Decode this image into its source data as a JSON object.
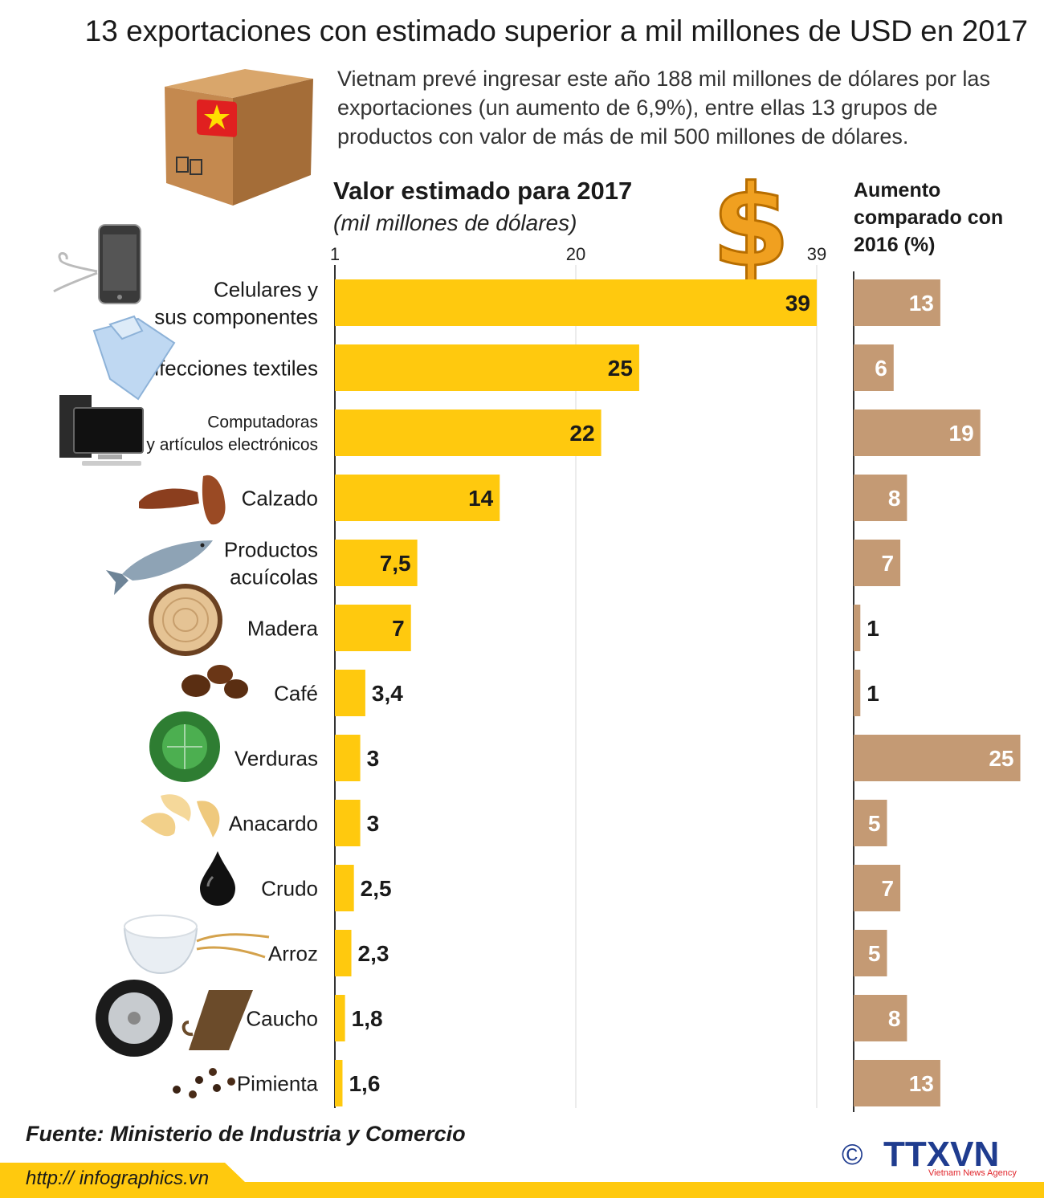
{
  "header": {
    "title": "13 exportaciones con estimado superior a mil millones de USD en 2017",
    "intro": "Vietnam prevé ingresar este año 188 mil millones de dólares por las exportaciones (un aumento de 6,9%), entre ellas 13 grupos de productos con valor de más de mil 500 millones de dólares."
  },
  "chart_data": [
    {
      "type": "bar",
      "orientation": "horizontal",
      "title": "Valor estimado para 2017",
      "subtitle": "(mil millones de dólares)",
      "xlim": [
        1,
        39
      ],
      "ticks": [
        "1",
        "20",
        "39"
      ],
      "bar_color": "#FFC90E",
      "categories": [
        "Celulares y sus componentes",
        "Confecciones textiles",
        "Computadoras y artículos electrónicos",
        "Calzado",
        "Productos acuícolas",
        "Madera",
        "Café",
        "Verduras",
        "Anacardo",
        "Crudo",
        "Arroz",
        "Caucho",
        "Pimienta"
      ],
      "values": [
        39,
        25,
        22,
        14,
        7.5,
        7,
        3.4,
        3,
        3,
        2.5,
        2.3,
        1.8,
        1.6
      ],
      "value_labels": [
        "39",
        "25",
        "22",
        "14",
        "7,5",
        "7",
        "3,4",
        "3",
        "3",
        "2,5",
        "2,3",
        "1,8",
        "1,6"
      ]
    },
    {
      "type": "bar",
      "orientation": "horizontal",
      "title": "Aumento comparado con 2016 (%)",
      "bar_color": "#C49A74",
      "categories": [
        "Celulares y sus componentes",
        "Confecciones textiles",
        "Computadoras y artículos electrónicos",
        "Calzado",
        "Productos acuícolas",
        "Madera",
        "Café",
        "Verduras",
        "Anacardo",
        "Crudo",
        "Arroz",
        "Caucho",
        "Pimienta"
      ],
      "values": [
        13,
        6,
        19,
        8,
        7,
        1,
        1,
        25,
        5,
        7,
        5,
        8,
        13
      ],
      "value_labels": [
        "13",
        "6",
        "19",
        "8",
        "7",
        "1",
        "1",
        "25",
        "5",
        "7",
        "5",
        "8",
        "13"
      ]
    }
  ],
  "category_labels": [
    [
      "Celulares y",
      "sus componentes"
    ],
    [
      "Confecciones textiles"
    ],
    [
      "Computadoras",
      "y artículos electrónicos"
    ],
    [
      "Calzado"
    ],
    [
      "Productos",
      "acuícolas"
    ],
    [
      "Madera"
    ],
    [
      "Café"
    ],
    [
      "Verduras"
    ],
    [
      "Anacardo"
    ],
    [
      "Crudo"
    ],
    [
      "Arroz"
    ],
    [
      "Caucho"
    ],
    [
      "Pimienta"
    ]
  ],
  "icons": [
    "phone-icon",
    "shirt-icon",
    "computer-icon",
    "shoes-icon",
    "fish-icon",
    "wood-icon",
    "coffee-icon",
    "cabbage-icon",
    "cashew-icon",
    "oil-drop-icon",
    "rice-icon",
    "rubber-tire-icon",
    "pepper-icon"
  ],
  "footer": {
    "source": "Fuente: Ministerio de Industria y Comercio",
    "url": "http:// infographics.vn",
    "brand": "TTXVN",
    "brand_sub": "Vietnam News Agency",
    "copyright": "©"
  },
  "colors": {
    "accent_yellow": "#FFC90E",
    "accent_tan": "#C49A74",
    "brand_blue": "#1F3C8F",
    "brand_red": "#E0252B"
  }
}
